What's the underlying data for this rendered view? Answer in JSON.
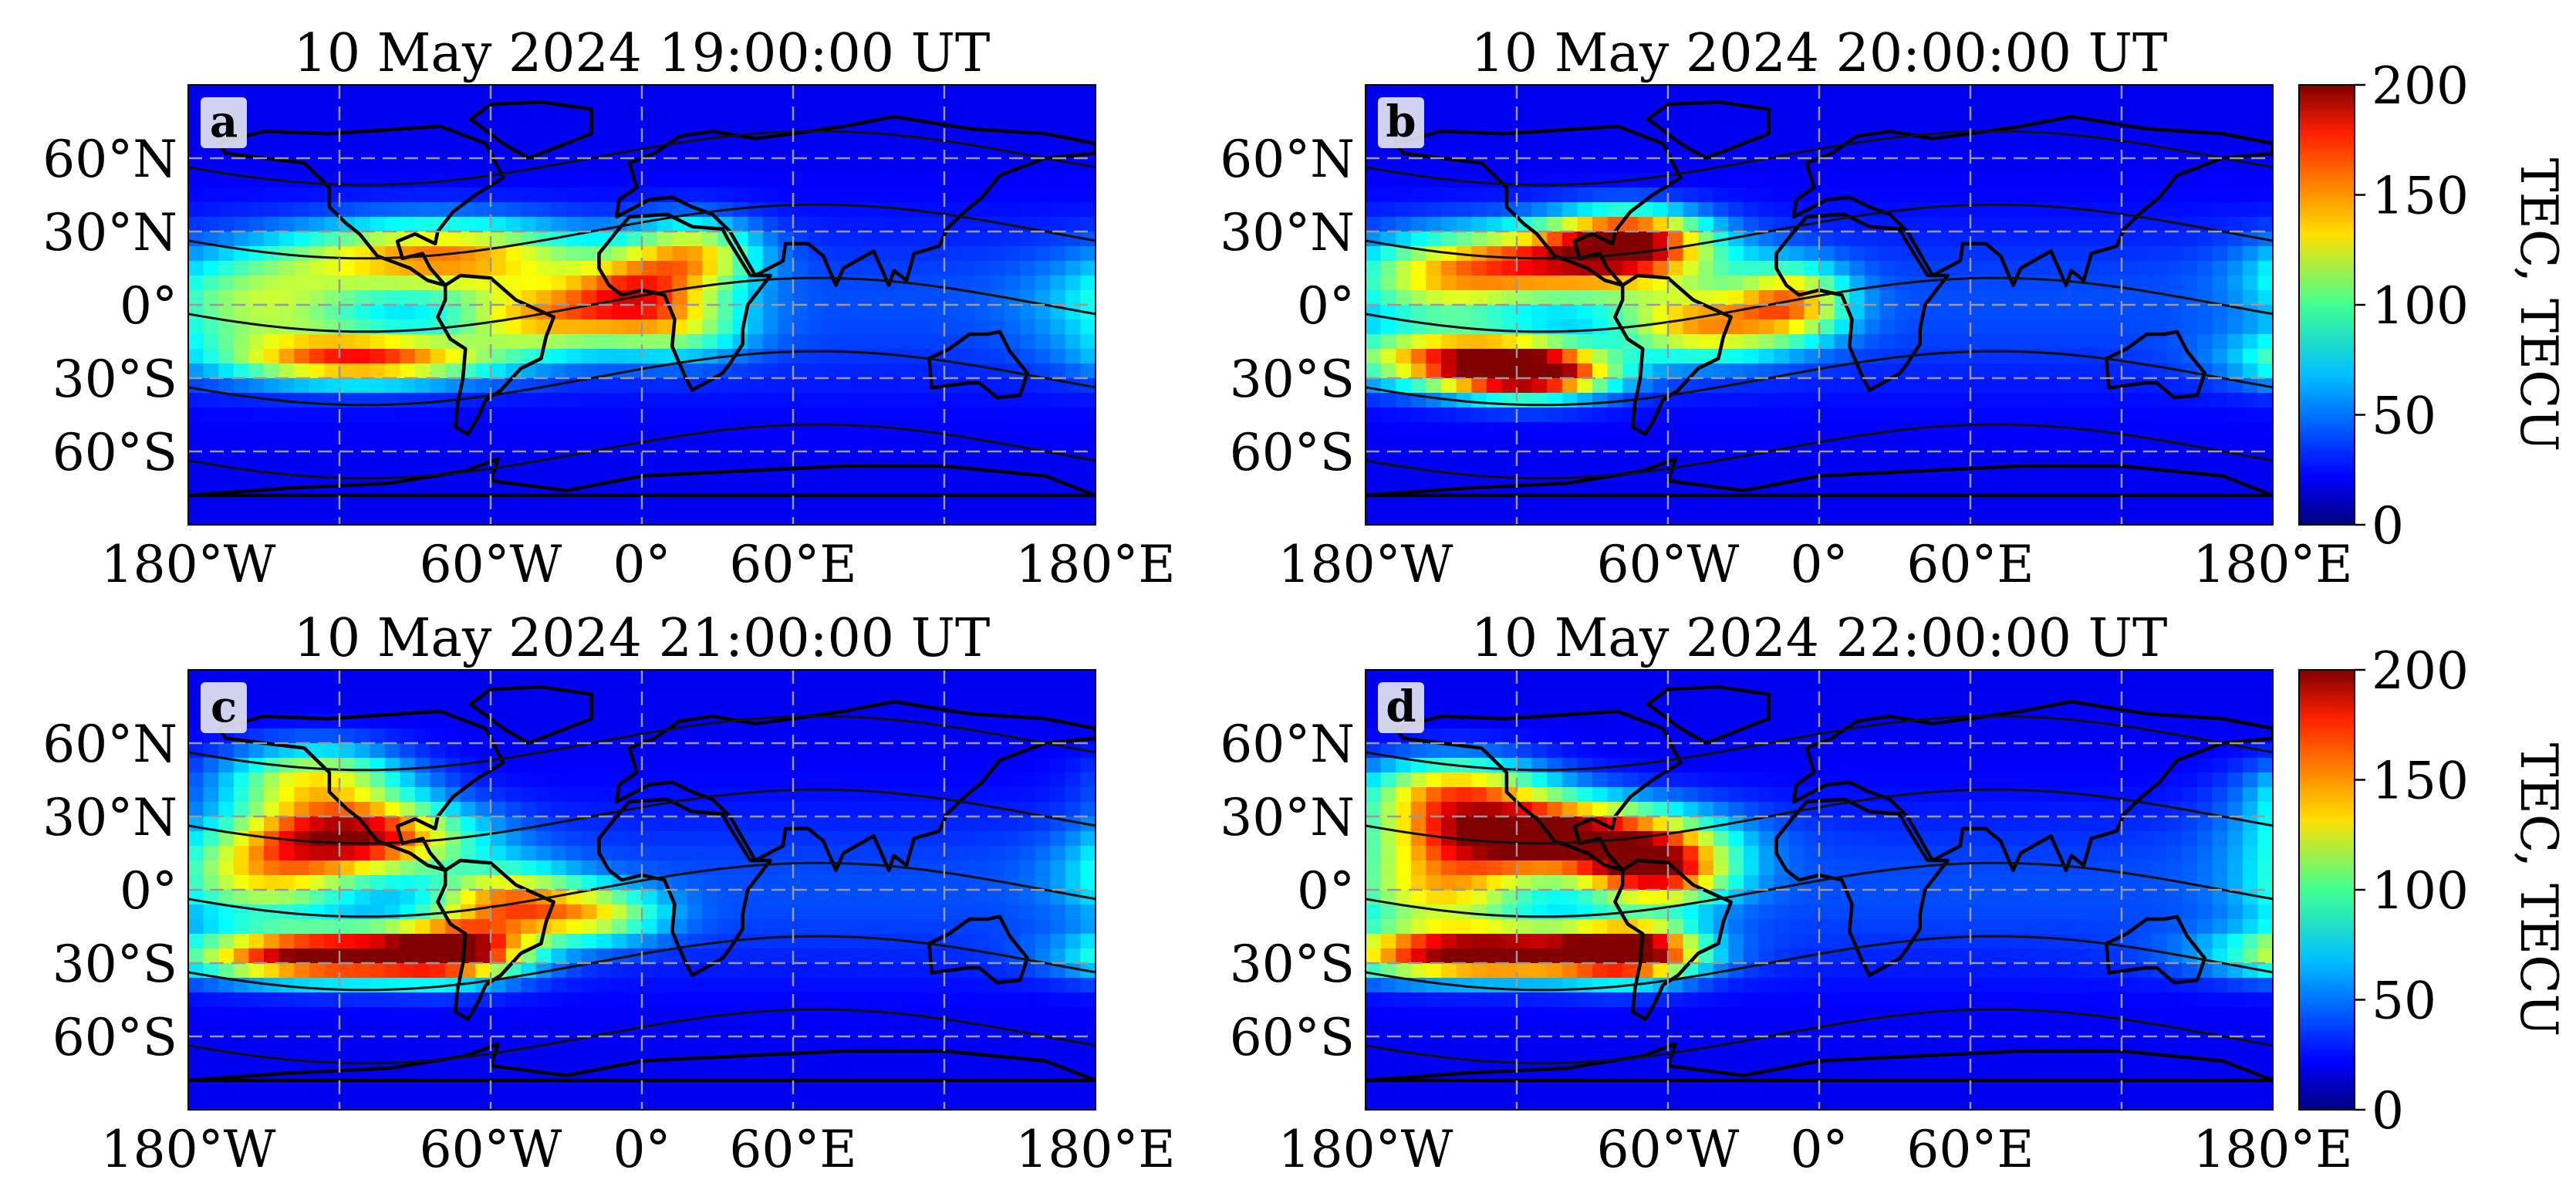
{
  "figure": {
    "colorbar": {
      "label": "TEC, TECU",
      "ticks": [
        "0",
        "50",
        "100",
        "150",
        "200"
      ],
      "range": [
        0,
        200
      ],
      "colormap": "jet"
    }
  },
  "chart_data": [
    {
      "type": "heatmap",
      "panel_label": "a",
      "title": "10 May 2024 19:00:00 UT",
      "x_tick_labels": [
        "180°W",
        "60°W",
        "0°",
        "60°E",
        "180°E"
      ],
      "y_tick_labels": [
        "60°N",
        "30°N",
        "0°",
        "30°S",
        "60°S"
      ],
      "xlim": [
        -180,
        180
      ],
      "ylim": [
        -90,
        90
      ],
      "grid": true,
      "colorbar": false,
      "blobs": [
        {
          "lon": -80,
          "lat": 20,
          "peak": 115,
          "sx": 40,
          "sy": 10
        },
        {
          "lon": -110,
          "lat": -22,
          "peak": 130,
          "sx": 35,
          "sy": 7
        },
        {
          "lon": -40,
          "lat": -5,
          "peak": 95,
          "sx": 25,
          "sy": 10
        },
        {
          "lon": -5,
          "lat": 5,
          "peak": 85,
          "sx": 18,
          "sy": 10
        },
        {
          "lon": 20,
          "lat": 20,
          "peak": 95,
          "sx": 18,
          "sy": 10
        },
        {
          "lon": 15,
          "lat": -8,
          "peak": 65,
          "sx": 20,
          "sy": 10
        },
        {
          "lon": -150,
          "lat": 0,
          "peak": 70,
          "sx": 30,
          "sy": 14
        }
      ]
    },
    {
      "type": "heatmap",
      "panel_label": "b",
      "title": "10 May 2024 20:00:00 UT",
      "x_tick_labels": [
        "180°W",
        "60°W",
        "0°",
        "60°E",
        "180°E"
      ],
      "y_tick_labels": [
        "60°N",
        "30°N",
        "0°",
        "30°S",
        "60°S"
      ],
      "xlim": [
        -180,
        180
      ],
      "ylim": [
        -90,
        90
      ],
      "grid": true,
      "colorbar": true,
      "blobs": [
        {
          "lon": -95,
          "lat": 18,
          "peak": 135,
          "sx": 35,
          "sy": 10
        },
        {
          "lon": -115,
          "lat": -28,
          "peak": 170,
          "sx": 22,
          "sy": 7
        },
        {
          "lon": -145,
          "lat": -22,
          "peak": 115,
          "sx": 30,
          "sy": 8
        },
        {
          "lon": -45,
          "lat": -8,
          "peak": 105,
          "sx": 25,
          "sy": 10
        },
        {
          "lon": -10,
          "lat": 2,
          "peak": 90,
          "sx": 15,
          "sy": 10
        },
        {
          "lon": -75,
          "lat": 28,
          "peak": 110,
          "sx": 20,
          "sy": 8
        },
        {
          "lon": -150,
          "lat": 10,
          "peak": 75,
          "sx": 25,
          "sy": 12
        }
      ]
    },
    {
      "type": "heatmap",
      "panel_label": "c",
      "title": "10 May 2024 21:00:00 UT",
      "x_tick_labels": [
        "180°W",
        "60°W",
        "0°",
        "60°E",
        "180°E"
      ],
      "y_tick_labels": [
        "60°N",
        "30°N",
        "0°",
        "30°S",
        "60°S"
      ],
      "xlim": [
        -180,
        180
      ],
      "ylim": [
        -90,
        90
      ],
      "grid": true,
      "colorbar": false,
      "blobs": [
        {
          "lon": -115,
          "lat": 22,
          "peak": 155,
          "sx": 30,
          "sy": 10
        },
        {
          "lon": -125,
          "lat": -27,
          "peak": 180,
          "sx": 35,
          "sy": 7
        },
        {
          "lon": -75,
          "lat": -25,
          "peak": 140,
          "sx": 20,
          "sy": 8
        },
        {
          "lon": -55,
          "lat": -5,
          "peak": 100,
          "sx": 20,
          "sy": 10
        },
        {
          "lon": -20,
          "lat": -10,
          "peak": 80,
          "sx": 20,
          "sy": 8
        },
        {
          "lon": -130,
          "lat": 45,
          "peak": 95,
          "sx": 25,
          "sy": 10
        },
        {
          "lon": -150,
          "lat": 5,
          "peak": 80,
          "sx": 25,
          "sy": 12
        }
      ]
    },
    {
      "type": "heatmap",
      "panel_label": "d",
      "title": "10 May 2024 22:00:00 UT",
      "x_tick_labels": [
        "180°W",
        "60°W",
        "0°",
        "60°E",
        "180°E"
      ],
      "y_tick_labels": [
        "60°N",
        "30°N",
        "0°",
        "30°S",
        "60°S"
      ],
      "xlim": [
        -180,
        180
      ],
      "ylim": [
        -90,
        90
      ],
      "grid": true,
      "colorbar": true,
      "blobs": [
        {
          "lon": -110,
          "lat": 22,
          "peak": 185,
          "sx": 38,
          "sy": 10
        },
        {
          "lon": -130,
          "lat": -26,
          "peak": 185,
          "sx": 40,
          "sy": 7
        },
        {
          "lon": -75,
          "lat": -25,
          "peak": 150,
          "sx": 18,
          "sy": 8
        },
        {
          "lon": -65,
          "lat": 8,
          "peak": 140,
          "sx": 20,
          "sy": 10
        },
        {
          "lon": -145,
          "lat": 40,
          "peak": 110,
          "sx": 25,
          "sy": 10
        },
        {
          "lon": -150,
          "lat": 0,
          "peak": 90,
          "sx": 25,
          "sy": 12
        }
      ]
    }
  ]
}
